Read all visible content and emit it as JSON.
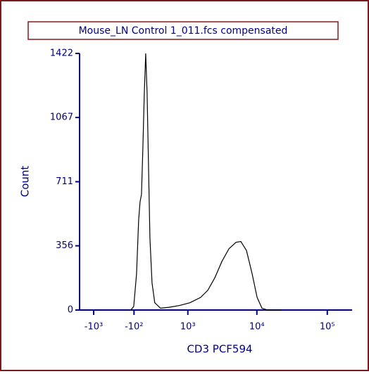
{
  "chart_data": {
    "type": "line",
    "title": "Mouse_LN Control 1_011.fcs compensated",
    "x_label": "CD3 PCF594",
    "y_label": "Count",
    "xscale": "biexponential",
    "x": [
      -148,
      -104,
      -62,
      -31,
      -10,
      10,
      31,
      52,
      73,
      94,
      115,
      137,
      170,
      214,
      311,
      477,
      732,
      1074,
      1559,
      1994,
      2523,
      3180,
      4013,
      5045,
      5923,
      7125,
      8573,
      10070,
      11830,
      14220,
      22540
    ],
    "series": [
      {
        "color": "#000000",
        "values": [
          0,
          20,
          200,
          500,
          600,
          640,
          900,
          1200,
          1422,
          1200,
          800,
          400,
          150,
          40,
          10,
          15,
          25,
          40,
          70,
          110,
          180,
          270,
          340,
          375,
          380,
          330,
          200,
          70,
          10,
          0,
          0
        ]
      }
    ],
    "xlim": [
      -1632,
      225000
    ],
    "xticks": [
      {
        "value": -1000,
        "label": "-10³"
      },
      {
        "value": -100,
        "label": "-10²"
      },
      {
        "value": 1000,
        "label": "10³"
      },
      {
        "value": 10000,
        "label": "10⁴"
      },
      {
        "value": 100000,
        "label": "10⁵"
      }
    ],
    "ylim": [
      0,
      1422
    ],
    "yticks": [
      0,
      356,
      711,
      1067,
      1422
    ],
    "axis_color": "#000080"
  }
}
